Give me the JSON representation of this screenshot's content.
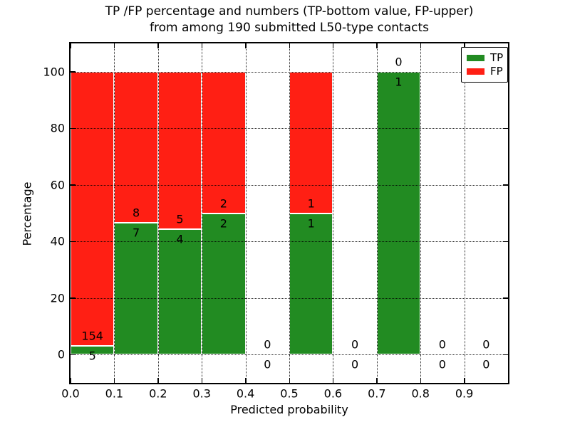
{
  "chart_data": {
    "type": "bar",
    "stacked": true,
    "title_lines": [
      "TP /FP percentage and numbers (TP-bottom value, FP-upper)",
      "from among 190 submitted L50-type contacts"
    ],
    "xlabel": "Predicted probability",
    "ylabel": "Percentage",
    "xlim": [
      0.0,
      1.0
    ],
    "ylim": [
      -10,
      110
    ],
    "xticks": [
      "0.0",
      "0.1",
      "0.2",
      "0.3",
      "0.4",
      "0.5",
      "0.6",
      "0.7",
      "0.8",
      "0.9"
    ],
    "yticks": [
      "0",
      "20",
      "40",
      "60",
      "80",
      "100"
    ],
    "grid": "dotted",
    "grid_above_bars": true,
    "total_contacts": 190,
    "bin_width": 0.1,
    "categories": [
      "0.0-0.1",
      "0.1-0.2",
      "0.2-0.3",
      "0.3-0.4",
      "0.4-0.5",
      "0.5-0.6",
      "0.6-0.7",
      "0.7-0.8",
      "0.8-0.9",
      "0.9-1.0"
    ],
    "series": [
      {
        "name": "TP",
        "color": "#228B22",
        "counts": [
          5,
          7,
          4,
          2,
          0,
          1,
          0,
          1,
          0,
          0
        ],
        "percentages": [
          3.1,
          46.7,
          44.4,
          50.0,
          0,
          50.0,
          0,
          100.0,
          0,
          0
        ]
      },
      {
        "name": "FP",
        "color": "#FF1F14",
        "counts": [
          154,
          8,
          5,
          2,
          0,
          1,
          0,
          0,
          0,
          0
        ],
        "percentages": [
          96.9,
          53.3,
          55.6,
          50.0,
          0,
          50.0,
          0,
          0,
          0,
          0
        ]
      }
    ],
    "legend": {
      "position": "upper-right",
      "entries": [
        {
          "label": "TP",
          "color": "#228B22"
        },
        {
          "label": "FP",
          "color": "#FF1F14"
        }
      ]
    }
  }
}
